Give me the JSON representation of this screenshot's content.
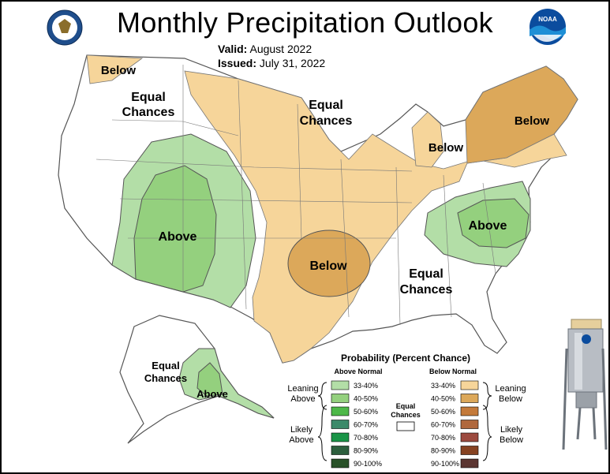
{
  "title": "Monthly Precipitation Outlook",
  "valid_label": "Valid:",
  "valid_value": "August 2022",
  "issued_label": "Issued:",
  "issued_value": "July 31, 2022",
  "logos": {
    "left": "doc-seal-icon",
    "right": "noaa-logo-icon",
    "gauge": "rain-gauge-icon"
  },
  "map_labels": {
    "nw_below": "Below",
    "west_equal_1": "Equal",
    "west_equal_2": "Chances",
    "central_equal_1": "Equal",
    "central_equal_2": "Chances",
    "michigan_below": "Below",
    "northeast_below": "Below",
    "southwest_above": "Above",
    "southern_plains_below": "Below",
    "southeast_above": "Above",
    "southeast_equal_1": "Equal",
    "southeast_equal_2": "Chances",
    "alaska_equal_1": "Equal",
    "alaska_equal_2": "Chances",
    "alaska_above": "Above"
  },
  "legend": {
    "title": "Probability (Percent Chance)",
    "above_header": "Above Normal",
    "below_header": "Below Normal",
    "leaning_above": [
      "Leaning",
      "Above"
    ],
    "likely_above": [
      "Likely",
      "Above"
    ],
    "leaning_below": [
      "Leaning",
      "Below"
    ],
    "likely_below": [
      "Likely",
      "Below"
    ],
    "equal": [
      "Equal",
      "Chances"
    ],
    "rows": [
      {
        "range": "33-40%",
        "above_color": "#b3dea7",
        "below_color": "#f6d59a"
      },
      {
        "range": "40-50%",
        "above_color": "#94d07e",
        "below_color": "#dca85a"
      },
      {
        "range": "50-60%",
        "above_color": "#4db848",
        "below_color": "#c47a3a"
      },
      {
        "range": "60-70%",
        "above_color": "#3c8a6a",
        "below_color": "#b0683d"
      },
      {
        "range": "70-80%",
        "above_color": "#199447",
        "below_color": "#9c4a3f"
      },
      {
        "range": "80-90%",
        "above_color": "#2c5e3d",
        "below_color": "#864221"
      },
      {
        "range": "90-100%",
        "above_color": "#285128",
        "below_color": "#5b3531"
      }
    ]
  },
  "colors": {
    "leaning_above": "#b3dea7",
    "above_40_50": "#94d07e",
    "leaning_below": "#f6d59a",
    "below_40_50": "#dca85a",
    "equal": "#ffffff"
  }
}
